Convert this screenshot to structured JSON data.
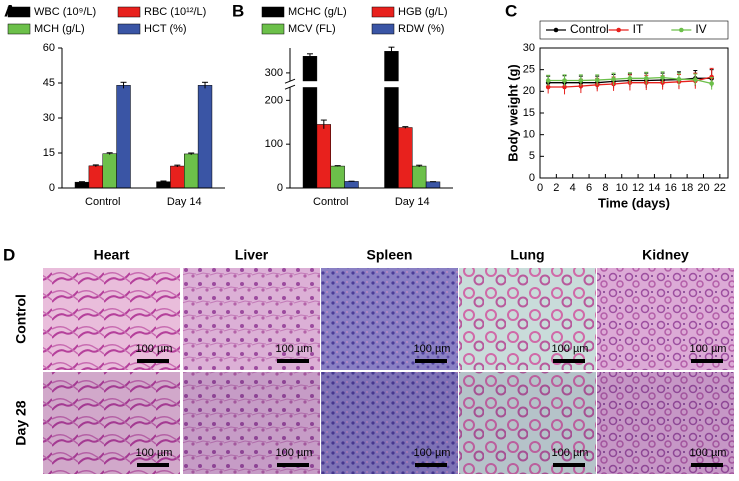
{
  "chart_data": [
    {
      "type": "bar",
      "panel_label": "A",
      "categories": [
        "Control",
        "Day 14"
      ],
      "series": [
        {
          "name": "WBC (10⁹/L)",
          "color": "#000000",
          "values": [
            2.5,
            2.7
          ],
          "errors": [
            0.2,
            0.3
          ]
        },
        {
          "name": "RBC (10¹²/L)",
          "color": "#e8211d",
          "values": [
            9.5,
            9.4
          ],
          "errors": [
            0.4,
            0.4
          ]
        },
        {
          "name": "MCH (g/L)",
          "color": "#6cc04a",
          "values": [
            14.7,
            14.6
          ],
          "errors": [
            0.4,
            0.4
          ]
        },
        {
          "name": "HCT (%)",
          "color": "#3a55a5",
          "values": [
            44,
            44
          ],
          "errors": [
            1.3,
            1.3
          ]
        }
      ],
      "ylim": [
        0,
        60
      ],
      "yticks": [
        0,
        15,
        30,
        45,
        60
      ]
    },
    {
      "type": "bar",
      "panel_label": "B",
      "categories": [
        "Control",
        "Day 14"
      ],
      "series": [
        {
          "name": "MCHC (g/L)",
          "color": "#000000",
          "values": [
            320,
            326
          ],
          "errors": [
            3,
            5
          ]
        },
        {
          "name": "HGB (g/L)",
          "color": "#e8211d",
          "values": [
            145,
            138
          ],
          "errors": [
            10,
            2
          ]
        },
        {
          "name": "MCV (FL)",
          "color": "#6cc04a",
          "values": [
            50,
            50
          ],
          "errors": [
            1,
            2
          ]
        },
        {
          "name": "RDW (%)",
          "color": "#3a55a5",
          "values": [
            15,
            14
          ],
          "errors": [
            0.5,
            0.5
          ]
        }
      ],
      "ylim": [
        0,
        330
      ],
      "yticks": [
        0,
        100,
        200,
        300
      ],
      "axis_break": [
        230,
        290
      ]
    },
    {
      "type": "line",
      "panel_label": "C",
      "xlabel": "Time (days)",
      "ylabel": "Body weight (g)",
      "x": [
        1,
        3,
        5,
        7,
        9,
        11,
        13,
        15,
        17,
        19,
        21
      ],
      "series": [
        {
          "name": "Control",
          "color": "#000000",
          "values": [
            22,
            22,
            22,
            22,
            22.3,
            22.5,
            22.5,
            22.6,
            22.7,
            23,
            23
          ],
          "errors": [
            1.5,
            1.6,
            1.5,
            1.5,
            1.6,
            1.5,
            1.7,
            1.6,
            1.8,
            1.8,
            2
          ]
        },
        {
          "name": "IT",
          "color": "#e8211d",
          "values": [
            21,
            21,
            21.2,
            21.5,
            21.7,
            22,
            22,
            22,
            22.2,
            22.4,
            23.3
          ],
          "errors": [
            1.5,
            1.7,
            1.6,
            1.5,
            1.6,
            1.8,
            1.7,
            1.6,
            1.7,
            1.8,
            2
          ]
        },
        {
          "name": "IV",
          "color": "#6cc04a",
          "values": [
            22.5,
            22.5,
            22.5,
            22.6,
            22.8,
            23,
            23,
            23.2,
            22.8,
            22.7,
            21.8
          ],
          "errors": [
            1.2,
            1.3,
            1.3,
            1.2,
            1.4,
            1.3,
            1.4,
            1.3,
            1.4,
            1.3,
            1.4
          ]
        }
      ],
      "xlim": [
        0,
        23
      ],
      "xticks": [
        0,
        2,
        4,
        6,
        8,
        10,
        12,
        14,
        16,
        18,
        20,
        22
      ],
      "ylim": [
        0,
        30
      ],
      "yticks": [
        0,
        5,
        10,
        15,
        20,
        25,
        30
      ]
    }
  ],
  "panel_d": {
    "panel_label": "D",
    "columns": [
      "Heart",
      "Liver",
      "Spleen",
      "Lung",
      "Kidney"
    ],
    "rows": [
      "Control",
      "Day 28"
    ],
    "scale_bar": "100 µm"
  }
}
